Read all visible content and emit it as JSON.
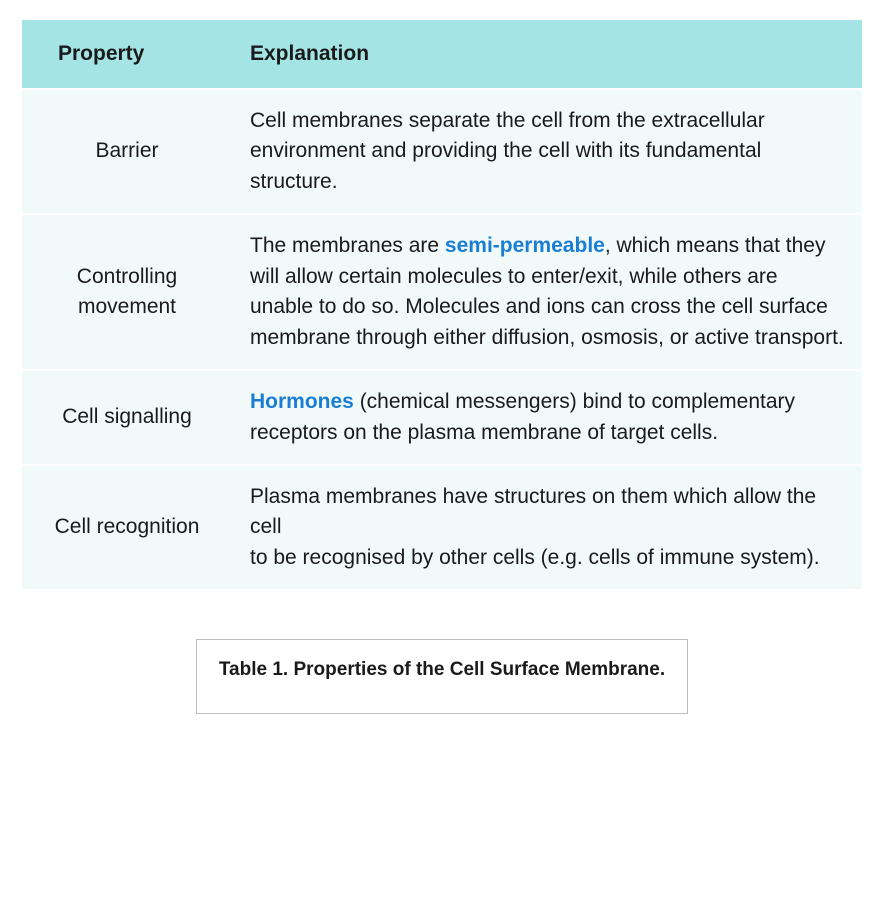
{
  "type": "table",
  "columns": [
    "Property",
    "Explanation"
  ],
  "column_widths_pct": [
    25,
    75
  ],
  "header_bg": "#a5e4e4",
  "row_bg": "#f1f9f9",
  "link_color": "#1a7fd4",
  "text_color": "#1a1a1a",
  "caption_border_color": "#bdbdbd",
  "font_family": "Avenir Next, Avenir, Segoe UI, Helvetica Neue, Arial, sans-serif",
  "header_fontsize_pt": 16,
  "body_fontsize_pt": 16,
  "caption_fontsize_pt": 14,
  "rows": [
    {
      "property": "Barrier",
      "explanation_parts": [
        {
          "text": "Cell membranes separate the cell from the extracellular environment and providing the cell with its fundamental structure."
        }
      ]
    },
    {
      "property": "Controlling movement",
      "explanation_parts": [
        {
          "text": "The membranes are "
        },
        {
          "text": "semi-permeable",
          "link": true
        },
        {
          "text": ", which means that they will allow certain molecules to enter/exit, while others are unable to do so. Molecules and ions can cross the cell surface membrane through either diffusion, osmosis, or active transport."
        }
      ]
    },
    {
      "property": "Cell signalling",
      "explanation_parts": [
        {
          "text": "Hormones",
          "link": true
        },
        {
          "text": " (chemical messengers) bind to complementary receptors on the plasma membrane of target cells."
        }
      ]
    },
    {
      "property": "Cell recognition",
      "explanation_parts": [
        {
          "text": "Plasma membranes have structures on them which allow the cell"
        },
        {
          "br": true
        },
        {
          "text": "to be recognised by other cells (e.g. cells of immune system)."
        }
      ]
    }
  ],
  "caption": "Table 1. Properties of the Cell Surface Membrane."
}
